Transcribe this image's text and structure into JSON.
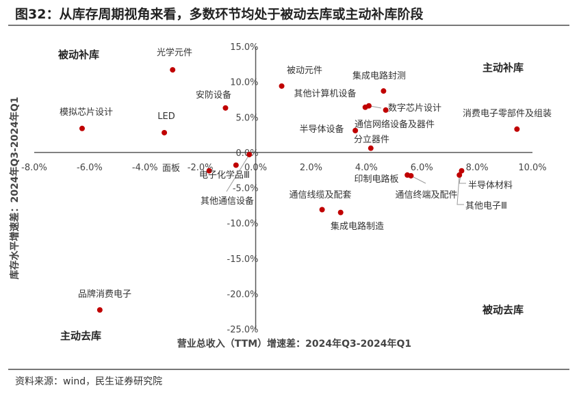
{
  "title": "图32：从库存周期视角来看，多数环节均处于被动去库或主动补库阶段",
  "source": "资料来源：wind，民生证券研究院",
  "colors": {
    "point": "#C00000",
    "axis": "#595959"
  },
  "chart_data": {
    "type": "scatter",
    "xlabel": "营业总收入（TTM）增速差：2024年Q3-2024年Q1",
    "ylabel": "库存水平增速差：2024年Q3-2024年Q1",
    "xlim": [
      -8,
      10
    ],
    "ylim": [
      -25,
      15
    ],
    "xticks": [
      -8,
      -6,
      -4,
      -2,
      0,
      2,
      4,
      6,
      8,
      10
    ],
    "xtick_labels": [
      "-8.0%",
      "-6.0%",
      "-4.0%",
      "-2.0%",
      "0.0%",
      "2.0%",
      "4.0%",
      "6.0%",
      "8.0%",
      "10.0%"
    ],
    "yticks": [
      15,
      10,
      5,
      0,
      -5,
      -10,
      -15,
      -20,
      -25
    ],
    "ytick_labels": [
      "15.0%",
      "10.0%",
      "5.0%",
      "0.0%",
      "-5.0%",
      "-10.0%",
      "-15.0%",
      "-20.0%",
      "-25.0%"
    ],
    "quadrants": {
      "top_left": "被动补库",
      "top_right": "主动补库",
      "bottom_right": "被动去库",
      "bottom_left": "主动去库"
    },
    "points": [
      {
        "name": "光学元件",
        "x": -3.0,
        "y": 11.7
      },
      {
        "name": "模拟芯片设计",
        "x": -6.27,
        "y": 3.4
      },
      {
        "name": "LED",
        "x": -3.3,
        "y": 2.8
      },
      {
        "name": "安防设备",
        "x": -1.09,
        "y": 6.3
      },
      {
        "name": "被动元件",
        "x": 0.94,
        "y": 9.4
      },
      {
        "name": "集成电路封测",
        "x": 4.62,
        "y": 8.7
      },
      {
        "name": "其他计算机设备",
        "x": 3.96,
        "y": 6.4
      },
      {
        "name": "数字芯片设计",
        "x": 4.09,
        "y": 6.6
      },
      {
        "name": "通信网络设备及器件",
        "x": 4.7,
        "y": 6.0
      },
      {
        "name": "半导体设备",
        "x": 3.6,
        "y": 3.1
      },
      {
        "name": "分立器件",
        "x": 4.16,
        "y": 0.6
      },
      {
        "name": "消费电子零部件及组装",
        "x": 9.44,
        "y": 3.3
      },
      {
        "name": "面板",
        "x": -1.68,
        "y": -2.6
      },
      {
        "name": "电子化学品Ⅲ",
        "x": -0.71,
        "y": -1.8
      },
      {
        "name": "其他通信设备",
        "x": -0.23,
        "y": -0.3
      },
      {
        "name": "印制电路板",
        "x": 5.48,
        "y": -3.2
      },
      {
        "name": "通信终端及配件",
        "x": 5.61,
        "y": -3.3
      },
      {
        "name": "半导体材料",
        "x": 7.44,
        "y": -2.6
      },
      {
        "name": "其他电子Ⅲ",
        "x": 7.36,
        "y": -3.2
      },
      {
        "name": "通信线缆及配套",
        "x": 2.4,
        "y": -8.1
      },
      {
        "name": "集成电路制造",
        "x": 3.07,
        "y": -8.5
      },
      {
        "name": "品牌消费电子",
        "x": -5.63,
        "y": -22.3
      }
    ]
  }
}
